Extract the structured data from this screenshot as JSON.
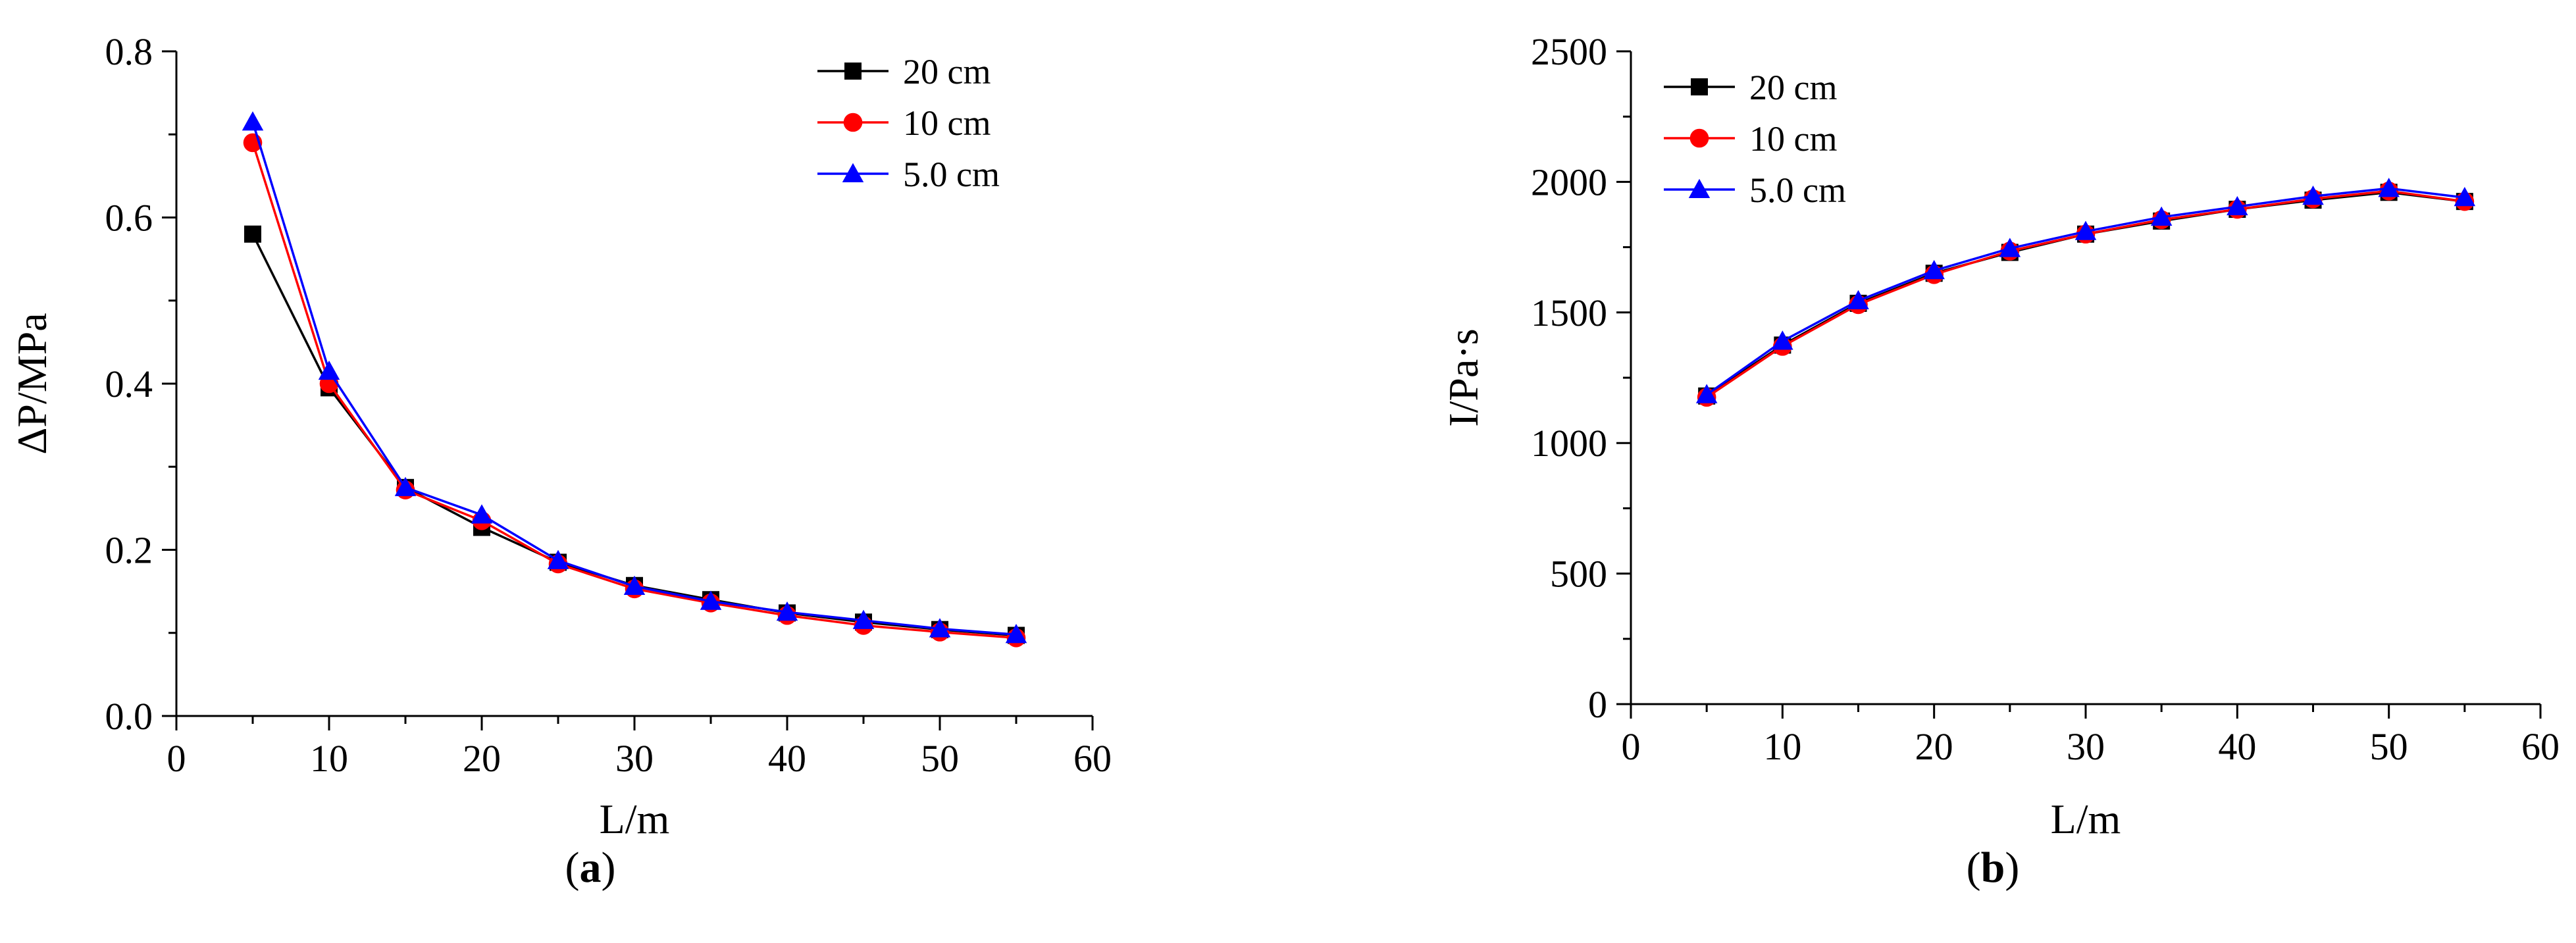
{
  "figure": {
    "panels": [
      {
        "label_open": "(",
        "label_letter": "a",
        "label_close": ")"
      },
      {
        "label_open": "(",
        "label_letter": "b",
        "label_close": ")"
      }
    ]
  },
  "chart_data": [
    {
      "type": "line",
      "title": "",
      "xlabel": "L/m",
      "ylabel": "ΔP/MPa",
      "xlim": [
        0,
        60
      ],
      "ylim": [
        0.0,
        0.8
      ],
      "xticks": [
        0,
        10,
        20,
        30,
        40,
        50,
        60
      ],
      "xtick_labels": [
        "0",
        "10",
        "20",
        "30",
        "40",
        "50",
        "60"
      ],
      "yticks": [
        0.0,
        0.2,
        0.4,
        0.6,
        0.8
      ],
      "ytick_labels": [
        "0.0",
        "0.2",
        "0.4",
        "0.6",
        "0.8"
      ],
      "grid": false,
      "legend_position": "top-right",
      "x": [
        5,
        10,
        15,
        20,
        25,
        30,
        35,
        40,
        45,
        50,
        55
      ],
      "series": [
        {
          "name": "20 cm",
          "color": "#000000",
          "marker": "square",
          "values": [
            0.58,
            0.395,
            0.275,
            0.227,
            0.185,
            0.157,
            0.14,
            0.124,
            0.113,
            0.104,
            0.097
          ]
        },
        {
          "name": "10 cm",
          "color": "#ff0000",
          "marker": "circle",
          "values": [
            0.69,
            0.4,
            0.272,
            0.235,
            0.183,
            0.153,
            0.136,
            0.121,
            0.109,
            0.101,
            0.094
          ]
        },
        {
          "name": "5.0 cm",
          "color": "#0000ff",
          "marker": "triangle",
          "values": [
            0.715,
            0.415,
            0.275,
            0.242,
            0.187,
            0.156,
            0.138,
            0.125,
            0.115,
            0.105,
            0.098
          ]
        }
      ]
    },
    {
      "type": "line",
      "title": "",
      "xlabel": "L/m",
      "ylabel": "I/Pa·s",
      "xlim": [
        0,
        60
      ],
      "ylim": [
        0,
        2500
      ],
      "xticks": [
        0,
        10,
        20,
        30,
        40,
        50,
        60
      ],
      "xtick_labels": [
        "0",
        "10",
        "20",
        "30",
        "40",
        "50",
        "60"
      ],
      "yticks": [
        0,
        500,
        1000,
        1500,
        2000,
        2500
      ],
      "ytick_labels": [
        "0",
        "500",
        "1000",
        "1500",
        "2000",
        "2500"
      ],
      "grid": false,
      "legend_position": "top-left",
      "x": [
        5,
        10,
        15,
        20,
        25,
        30,
        35,
        40,
        45,
        50,
        55
      ],
      "series": [
        {
          "name": "20 cm",
          "color": "#000000",
          "marker": "square",
          "values": [
            1180,
            1375,
            1535,
            1650,
            1730,
            1800,
            1850,
            1895,
            1930,
            1960,
            1925
          ]
        },
        {
          "name": "10 cm",
          "color": "#ff0000",
          "marker": "circle",
          "values": [
            1175,
            1370,
            1530,
            1645,
            1735,
            1800,
            1855,
            1895,
            1935,
            1965,
            1925
          ]
        },
        {
          "name": "5.0 cm",
          "color": "#0000ff",
          "marker": "triangle",
          "values": [
            1185,
            1390,
            1545,
            1660,
            1745,
            1810,
            1865,
            1905,
            1945,
            1975,
            1940
          ]
        }
      ]
    }
  ]
}
